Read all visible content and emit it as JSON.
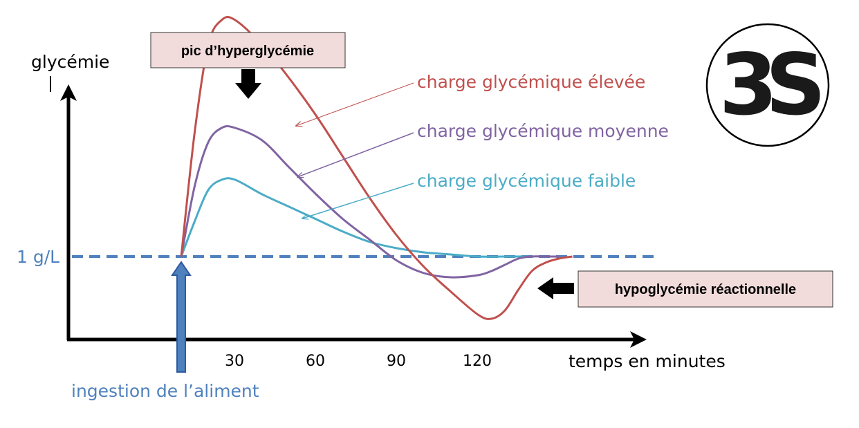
{
  "chart_data": {
    "type": "line",
    "ylabel": "glycémie",
    "xlabel": "temps en minutes",
    "xlim": [
      -30,
      145
    ],
    "ylim": [
      0.5,
      2.5
    ],
    "x_ticks": [
      30,
      60,
      90,
      120
    ],
    "baseline": {
      "label": "1 g/L",
      "value": 1.0,
      "color": "#4f81bd"
    },
    "ingestion_label": "ingestion de l’aliment",
    "ingestion_x": 0,
    "series": [
      {
        "name": "charge glycémique élevée",
        "color": "#c0504d",
        "points": [
          [
            0,
            1.0
          ],
          [
            5,
            1.6
          ],
          [
            10,
            2.02
          ],
          [
            15,
            2.14
          ],
          [
            20,
            2.14
          ],
          [
            30,
            2.02
          ],
          [
            40,
            1.86
          ],
          [
            50,
            1.68
          ],
          [
            60,
            1.48
          ],
          [
            70,
            1.28
          ],
          [
            80,
            1.1
          ],
          [
            90,
            0.95
          ],
          [
            100,
            0.83
          ],
          [
            110,
            0.72
          ],
          [
            115,
            0.7
          ],
          [
            120,
            0.74
          ],
          [
            125,
            0.84
          ],
          [
            130,
            0.93
          ],
          [
            135,
            0.97
          ],
          [
            140,
            0.99
          ],
          [
            145,
            1.0
          ]
        ]
      },
      {
        "name": "charge glycémique moyenne",
        "color": "#8064a2",
        "points": [
          [
            0,
            1.0
          ],
          [
            5,
            1.34
          ],
          [
            10,
            1.55
          ],
          [
            15,
            1.62
          ],
          [
            20,
            1.62
          ],
          [
            30,
            1.56
          ],
          [
            40,
            1.43
          ],
          [
            50,
            1.3
          ],
          [
            60,
            1.18
          ],
          [
            70,
            1.08
          ],
          [
            80,
            0.98
          ],
          [
            90,
            0.92
          ],
          [
            100,
            0.9
          ],
          [
            110,
            0.91
          ],
          [
            115,
            0.93
          ],
          [
            120,
            0.96
          ],
          [
            125,
            0.99
          ],
          [
            130,
            1.0
          ],
          [
            135,
            1.0
          ],
          [
            140,
            1.0
          ]
        ]
      },
      {
        "name": "charge glycémique faible",
        "color": "#4bacc6",
        "points": [
          [
            0,
            1.0
          ],
          [
            5,
            1.17
          ],
          [
            10,
            1.32
          ],
          [
            15,
            1.37
          ],
          [
            20,
            1.37
          ],
          [
            30,
            1.3
          ],
          [
            40,
            1.24
          ],
          [
            50,
            1.18
          ],
          [
            60,
            1.12
          ],
          [
            70,
            1.07
          ],
          [
            80,
            1.04
          ],
          [
            90,
            1.02
          ],
          [
            100,
            1.01
          ],
          [
            110,
            1.0
          ],
          [
            120,
            1.0
          ],
          [
            130,
            1.0
          ]
        ]
      }
    ],
    "annotations": {
      "peak": "pic d’hyperglycémie",
      "hypo": "hypoglycémie  réactionnelle"
    }
  },
  "logo_text": "3S"
}
